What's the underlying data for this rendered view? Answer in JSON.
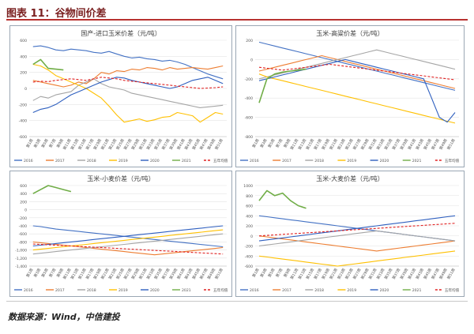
{
  "figure": {
    "title": "图表 11：谷物间价差",
    "source": "数据来源：Wind，中信建投"
  },
  "legend_labels": [
    "2016",
    "2017",
    "2018",
    "2019",
    "2020",
    "2021",
    "五年均值"
  ],
  "colors": [
    "#4472c4",
    "#ed7d31",
    "#a5a5a5",
    "#ffc000",
    "#2e5fbf",
    "#70ad47",
    "#e02020"
  ],
  "x_ticks": [
    "第1周",
    "第3周",
    "第5周",
    "第7周",
    "第9周",
    "第11周",
    "第13周",
    "第15周",
    "第17周",
    "第19周",
    "第21周",
    "第23周",
    "第25周",
    "第27周",
    "第29周",
    "第31周",
    "第33周",
    "第35周",
    "第37周",
    "第39周",
    "第41周",
    "第43周",
    "第45周",
    "第47周",
    "第49周",
    "第51周"
  ],
  "chart_data": [
    {
      "type": "line",
      "title": "国产-进口玉米价差（元/吨）",
      "ylim": [
        -600,
        600
      ],
      "yticks": [
        -600,
        -400,
        -200,
        0,
        200,
        400,
        600
      ],
      "yticklabels": [
        "-600",
        "-400",
        "-200",
        "0",
        "200",
        "400",
        "600"
      ],
      "series": [
        {
          "name": "2016",
          "values": [
            520,
            530,
            510,
            480,
            470,
            490,
            480,
            470,
            450,
            440,
            460,
            430,
            400,
            380,
            390,
            370,
            360,
            340,
            350,
            330,
            300,
            260,
            220,
            180,
            150,
            120
          ]
        },
        {
          "name": "2017",
          "values": [
            100,
            80,
            60,
            40,
            20,
            40,
            80,
            60,
            120,
            200,
            180,
            220,
            210,
            240,
            230,
            260,
            250,
            230,
            260,
            240,
            250,
            260,
            250,
            240,
            260,
            280
          ]
        },
        {
          "name": "2018",
          "values": [
            -150,
            -100,
            -120,
            -80,
            -60,
            -40,
            40,
            80,
            120,
            60,
            20,
            0,
            -20,
            -60,
            -80,
            -100,
            -120,
            -140,
            -160,
            -180,
            -200,
            -220,
            -240,
            -230,
            -220,
            -210
          ]
        },
        {
          "name": "2019",
          "values": [
            300,
            280,
            230,
            160,
            120,
            80,
            40,
            0,
            -60,
            -120,
            -220,
            -330,
            -420,
            -400,
            -380,
            -410,
            -390,
            -360,
            -350,
            -300,
            -320,
            -340,
            -420,
            -360,
            -300,
            -320
          ]
        },
        {
          "name": "2020",
          "values": [
            -300,
            -260,
            -240,
            -200,
            -140,
            -80,
            -40,
            0,
            40,
            80,
            110,
            140,
            130,
            100,
            80,
            60,
            40,
            20,
            0,
            20,
            60,
            100,
            120,
            140,
            100,
            60
          ]
        },
        {
          "name": "2021",
          "values": [
            300,
            360,
            250,
            240,
            230,
            null,
            null,
            null,
            null,
            null,
            null,
            null,
            null,
            null,
            null,
            null,
            null,
            null,
            null,
            null,
            null,
            null,
            null,
            null,
            null,
            null
          ]
        },
        {
          "name": "五年均值",
          "values": [
            80,
            90,
            85,
            100,
            110,
            120,
            110,
            100,
            120,
            140,
            130,
            120,
            100,
            90,
            80,
            70,
            60,
            50,
            40,
            30,
            20,
            10,
            0,
            5,
            10,
            20
          ]
        }
      ]
    },
    {
      "type": "line",
      "title": "玉米-高粱价差（元/吨）",
      "ylim": [
        -800,
        200
      ],
      "yticks": [
        -800,
        -600,
        -400,
        -200,
        0,
        200
      ],
      "yticklabels": [
        "-800",
        "-600",
        "-400",
        "-200",
        "0",
        "200"
      ],
      "series": [
        {
          "name": "2016",
          "values": [
            180,
            160,
            140,
            120,
            100,
            80,
            60,
            40,
            20,
            0,
            -20,
            -40,
            -60,
            -80,
            -100,
            -120,
            -140,
            -160,
            -180,
            -200,
            -220,
            -240,
            -260,
            -280,
            -300,
            -320
          ]
        },
        {
          "name": "2017",
          "values": [
            -120,
            -100,
            -80,
            -60,
            -40,
            -20,
            0,
            20,
            40,
            20,
            0,
            -20,
            -40,
            -60,
            -80,
            -100,
            -120,
            -140,
            -160,
            -180,
            -200,
            -220,
            -240,
            -260,
            -280,
            -300
          ]
        },
        {
          "name": "2018",
          "values": [
            -200,
            -180,
            -160,
            -140,
            -120,
            -100,
            -80,
            -60,
            -40,
            -20,
            0,
            20,
            40,
            60,
            80,
            100,
            80,
            60,
            40,
            20,
            0,
            -20,
            -40,
            -60,
            -80,
            -100
          ]
        },
        {
          "name": "2019",
          "values": [
            -150,
            -180,
            -200,
            -220,
            -240,
            -260,
            -280,
            -300,
            -320,
            -340,
            -360,
            -380,
            -400,
            -420,
            -440,
            -460,
            -480,
            -500,
            -520,
            -540,
            -560,
            -580,
            -600,
            -620,
            -640,
            -660
          ]
        },
        {
          "name": "2020",
          "values": [
            -220,
            -200,
            -180,
            -160,
            -140,
            -120,
            -100,
            -80,
            -60,
            -40,
            -20,
            0,
            -20,
            -40,
            -60,
            -80,
            -100,
            -120,
            -140,
            -160,
            -180,
            -200,
            -400,
            -600,
            -650,
            -550
          ]
        },
        {
          "name": "2021",
          "values": [
            -450,
            -200,
            -150,
            -130,
            -120,
            -110,
            -100,
            null,
            null,
            null,
            null,
            null,
            null,
            null,
            null,
            null,
            null,
            null,
            null,
            null,
            null,
            null,
            null,
            null,
            null,
            null
          ]
        },
        {
          "name": "五年均值",
          "values": [
            -80,
            -90,
            -100,
            -110,
            -100,
            -90,
            -80,
            -70,
            -60,
            -50,
            -60,
            -70,
            -80,
            -90,
            -100,
            -110,
            -120,
            -130,
            -140,
            -150,
            -160,
            -170,
            -180,
            -190,
            -200,
            -210
          ]
        }
      ]
    },
    {
      "type": "line",
      "title": "玉米-小麦价差（元/吨）",
      "ylim": [
        -1400,
        600
      ],
      "yticks": [
        -1400,
        -1200,
        -1000,
        -800,
        -600,
        -400,
        -200,
        0,
        200,
        400,
        600
      ],
      "yticklabels": [
        "-1,400",
        "-1,200",
        "-1,000",
        "-800",
        "-600",
        "-400",
        "-200",
        "0",
        "200",
        "400",
        "600"
      ],
      "series": [
        {
          "name": "2016",
          "values": [
            -400,
            -420,
            -450,
            -480,
            -500,
            -520,
            -540,
            -560,
            -580,
            -600,
            -620,
            -640,
            -660,
            -680,
            -700,
            -720,
            -740,
            -760,
            -780,
            -800,
            -820,
            -840,
            -860,
            -880,
            -900,
            -920
          ]
        },
        {
          "name": "2017",
          "values": [
            -800,
            -820,
            -840,
            -860,
            -880,
            -900,
            -920,
            -940,
            -960,
            -980,
            -1000,
            -1020,
            -1040,
            -1060,
            -1080,
            -1100,
            -1120,
            -1100,
            -1080,
            -1060,
            -1040,
            -1020,
            -1000,
            -980,
            -960,
            -940
          ]
        },
        {
          "name": "2018",
          "values": [
            -1100,
            -1080,
            -1060,
            -1040,
            -1020,
            -1000,
            -980,
            -960,
            -940,
            -920,
            -900,
            -880,
            -860,
            -840,
            -820,
            -800,
            -780,
            -760,
            -740,
            -720,
            -700,
            -680,
            -660,
            -640,
            -620,
            -600
          ]
        },
        {
          "name": "2019",
          "values": [
            -1000,
            -980,
            -960,
            -940,
            -920,
            -900,
            -880,
            -860,
            -840,
            -820,
            -800,
            -780,
            -760,
            -740,
            -720,
            -700,
            -680,
            -660,
            -640,
            -620,
            -600,
            -580,
            -560,
            -540,
            -520,
            -500
          ]
        },
        {
          "name": "2020",
          "values": [
            -900,
            -880,
            -860,
            -840,
            -820,
            -800,
            -780,
            -760,
            -740,
            -720,
            -700,
            -680,
            -660,
            -640,
            -620,
            -600,
            -580,
            -560,
            -540,
            -520,
            -500,
            -480,
            -460,
            -440,
            -420,
            -400
          ]
        },
        {
          "name": "2021",
          "values": [
            400,
            500,
            600,
            550,
            500,
            450,
            null,
            null,
            null,
            null,
            null,
            null,
            null,
            null,
            null,
            null,
            null,
            null,
            null,
            null,
            null,
            null,
            null,
            null,
            null,
            null
          ]
        },
        {
          "name": "五年均值",
          "values": [
            -850,
            -860,
            -870,
            -880,
            -890,
            -900,
            -910,
            -920,
            -930,
            -940,
            -950,
            -960,
            -970,
            -980,
            -990,
            -1000,
            -1010,
            -1020,
            -1030,
            -1040,
            -1050,
            -1060,
            -1070,
            -1080,
            -1090,
            -1100
          ]
        }
      ]
    },
    {
      "type": "line",
      "title": "玉米-大麦价差（元/吨）",
      "ylim": [
        -600,
        1000
      ],
      "yticks": [
        -600,
        -400,
        -200,
        0,
        200,
        400,
        600,
        800,
        1000
      ],
      "yticklabels": [
        "-600",
        "-400",
        "-200",
        "0",
        "200",
        "400",
        "600",
        "800",
        "1000"
      ],
      "series": [
        {
          "name": "2016",
          "values": [
            400,
            380,
            360,
            340,
            320,
            300,
            280,
            260,
            240,
            220,
            200,
            180,
            160,
            140,
            120,
            100,
            80,
            60,
            40,
            20,
            0,
            -20,
            -40,
            -60,
            -80,
            -100
          ]
        },
        {
          "name": "2017",
          "values": [
            0,
            -20,
            -40,
            -60,
            -80,
            -100,
            -120,
            -140,
            -160,
            -180,
            -200,
            -220,
            -240,
            -260,
            -280,
            -300,
            -280,
            -260,
            -240,
            -220,
            -200,
            -180,
            -160,
            -140,
            -120,
            -100
          ]
        },
        {
          "name": "2018",
          "values": [
            -200,
            -180,
            -160,
            -140,
            -120,
            -100,
            -80,
            -60,
            -40,
            -20,
            0,
            20,
            40,
            60,
            80,
            100,
            80,
            60,
            40,
            20,
            0,
            -20,
            -40,
            -60,
            -80,
            -100
          ]
        },
        {
          "name": "2019",
          "values": [
            -400,
            -420,
            -440,
            -460,
            -480,
            -500,
            -520,
            -540,
            -560,
            -580,
            -600,
            -580,
            -560,
            -540,
            -520,
            -500,
            -480,
            -460,
            -440,
            -420,
            -400,
            -380,
            -360,
            -340,
            -320,
            -300
          ]
        },
        {
          "name": "2020",
          "values": [
            -100,
            -80,
            -60,
            -40,
            -20,
            0,
            20,
            40,
            60,
            80,
            100,
            120,
            140,
            160,
            180,
            200,
            220,
            240,
            260,
            280,
            300,
            320,
            340,
            360,
            380,
            400
          ]
        },
        {
          "name": "2021",
          "values": [
            700,
            900,
            800,
            850,
            700,
            600,
            550,
            null,
            null,
            null,
            null,
            null,
            null,
            null,
            null,
            null,
            null,
            null,
            null,
            null,
            null,
            null,
            null,
            null,
            null,
            null
          ]
        },
        {
          "name": "五年均值",
          "values": [
            0,
            10,
            20,
            30,
            40,
            50,
            60,
            70,
            80,
            90,
            100,
            110,
            120,
            130,
            140,
            150,
            160,
            170,
            180,
            190,
            200,
            210,
            220,
            230,
            240,
            250
          ]
        }
      ]
    }
  ]
}
